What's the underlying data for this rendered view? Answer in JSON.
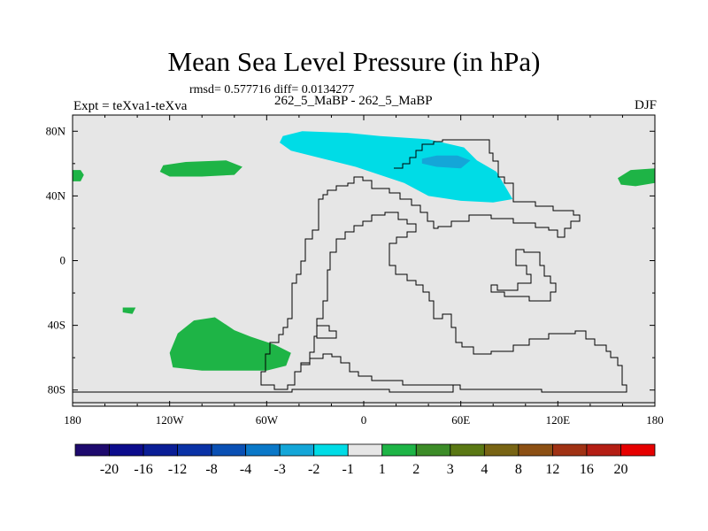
{
  "chart_data": {
    "type": "contour_map",
    "title": "Mean Sea Level Pressure (in hPa)",
    "stats": "rmsd= 0.577716 diff= 0.0134277",
    "subtitle": "262_5_MaBP - 262_5_MaBP",
    "left_label": "Expt = teXva1-teXva",
    "right_label": "DJF",
    "x_axis": {
      "range": [
        -180,
        180
      ],
      "ticks": [
        -180,
        -120,
        -60,
        0,
        60,
        120,
        180
      ],
      "tick_labels": [
        "180",
        "120W",
        "60W",
        "0",
        "60E",
        "120E",
        "180"
      ]
    },
    "y_axis": {
      "range": [
        -90,
        90
      ],
      "ticks": [
        80,
        40,
        0,
        -40,
        -80
      ],
      "tick_labels": [
        "80N",
        "40N",
        "0",
        "40S",
        "80S"
      ]
    },
    "colorbar": {
      "levels": [
        "-20",
        "-16",
        "-12",
        "-8",
        "-4",
        "-3",
        "-2",
        "-1",
        "1",
        "2",
        "3",
        "4",
        "8",
        "12",
        "16",
        "20"
      ],
      "colors": [
        "#1e0a6e",
        "#0c0c8c",
        "#0a1e96",
        "#0a32a6",
        "#0a50b4",
        "#0a78c8",
        "#14a6d8",
        "#00dce6",
        "#e6e6e6",
        "#1eb446",
        "#3c8c28",
        "#5a7814",
        "#786414",
        "#8c5014",
        "#a03214",
        "#b41e14",
        "#e60000"
      ]
    },
    "regions": [
      {
        "name": "northern-cyan-anomaly",
        "range": "-2 to -1",
        "color": "#00dce6",
        "points": [
          [
            -50,
            77
          ],
          [
            -38,
            80
          ],
          [
            -10,
            79
          ],
          [
            10,
            77
          ],
          [
            40,
            75
          ],
          [
            62,
            70
          ],
          [
            70,
            62
          ],
          [
            82,
            55
          ],
          [
            88,
            45
          ],
          [
            92,
            38
          ],
          [
            80,
            36
          ],
          [
            60,
            37
          ],
          [
            40,
            40
          ],
          [
            25,
            48
          ],
          [
            10,
            53
          ],
          [
            -5,
            58
          ],
          [
            -25,
            63
          ],
          [
            -45,
            68
          ],
          [
            -52,
            73
          ]
        ]
      },
      {
        "name": "arctic-blue-core",
        "range": "-3 to -2",
        "color": "#14a6d8",
        "points": [
          [
            36,
            63
          ],
          [
            45,
            65
          ],
          [
            58,
            65
          ],
          [
            66,
            62
          ],
          [
            60,
            57
          ],
          [
            45,
            58
          ],
          [
            36,
            60
          ]
        ]
      },
      {
        "name": "north-pacific-green",
        "range": "1 to 2",
        "color": "#1eb446",
        "points": [
          [
            -124,
            59
          ],
          [
            -110,
            61
          ],
          [
            -85,
            62
          ],
          [
            -75,
            58
          ],
          [
            -80,
            53
          ],
          [
            -100,
            52
          ],
          [
            -120,
            52
          ],
          [
            -126,
            55
          ]
        ]
      },
      {
        "name": "far-west-green",
        "range": "1 to 2",
        "color": "#1eb446",
        "points": [
          [
            -180,
            56
          ],
          [
            -175,
            56
          ],
          [
            -173,
            53
          ],
          [
            -175,
            49
          ],
          [
            -180,
            49
          ]
        ]
      },
      {
        "name": "east-pacific-green",
        "range": "1 to 2",
        "color": "#1eb446",
        "points": [
          [
            157,
            51
          ],
          [
            165,
            56
          ],
          [
            180,
            57
          ],
          [
            180,
            48
          ],
          [
            168,
            46
          ],
          [
            159,
            47
          ]
        ]
      },
      {
        "name": "southern-green",
        "range": "1 to 2",
        "color": "#1eb446",
        "points": [
          [
            -120,
            -57
          ],
          [
            -115,
            -45
          ],
          [
            -105,
            -37
          ],
          [
            -92,
            -35
          ],
          [
            -80,
            -43
          ],
          [
            -70,
            -47
          ],
          [
            -55,
            -52
          ],
          [
            -45,
            -57
          ],
          [
            -48,
            -65
          ],
          [
            -60,
            -68
          ],
          [
            -80,
            -68
          ],
          [
            -100,
            -68
          ],
          [
            -118,
            -66
          ]
        ]
      },
      {
        "name": "small-south-pacific-green",
        "range": "1 to 2",
        "color": "#1eb446",
        "points": [
          [
            -149,
            -29
          ],
          [
            -141,
            -29
          ],
          [
            -143,
            -33
          ],
          [
            -149,
            -32
          ]
        ]
      }
    ]
  }
}
